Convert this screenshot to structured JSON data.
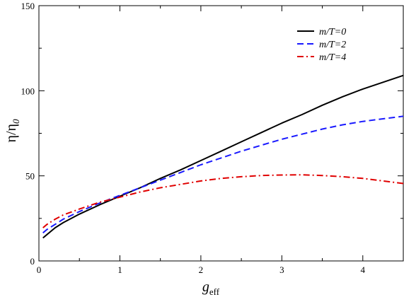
{
  "chart_data": {
    "type": "line",
    "xlabel": "g",
    "xlabel_sub": "eff",
    "ylabel": "η/η",
    "ylabel_sub": "0",
    "xlim": [
      0,
      4.5
    ],
    "ylim": [
      0,
      150
    ],
    "x_ticks": [
      0,
      1,
      2,
      3,
      4
    ],
    "y_ticks": [
      0,
      50,
      100,
      150
    ],
    "x_tick_labels": [
      "0",
      "1",
      "2",
      "3",
      "4"
    ],
    "y_tick_labels": [
      "0",
      "50",
      "100",
      "150"
    ],
    "grid": false,
    "legend_position": "top-right",
    "series": [
      {
        "name": "m/T=0",
        "color": "#000000",
        "dash": "solid",
        "x": [
          0.05,
          0.1,
          0.2,
          0.3,
          0.5,
          0.75,
          1.0,
          1.25,
          1.5,
          1.75,
          2.0,
          2.25,
          2.5,
          2.75,
          3.0,
          3.25,
          3.5,
          3.75,
          4.0,
          4.25,
          4.5
        ],
        "y": [
          13.5,
          15.5,
          19.5,
          22.5,
          27.5,
          33.0,
          38.0,
          43.0,
          48.5,
          53.5,
          59.0,
          64.5,
          70.0,
          75.5,
          81.0,
          86.0,
          91.5,
          96.5,
          101.0,
          105.0,
          109.0
        ]
      },
      {
        "name": "m/T=2",
        "color": "#1a1aff",
        "dash": "dashed",
        "x": [
          0.05,
          0.1,
          0.2,
          0.3,
          0.5,
          0.75,
          1.0,
          1.25,
          1.5,
          1.75,
          2.0,
          2.25,
          2.5,
          2.75,
          3.0,
          3.25,
          3.5,
          3.75,
          4.0,
          4.25,
          4.5
        ],
        "y": [
          16.5,
          18.5,
          21.5,
          24.5,
          29.0,
          34.0,
          38.5,
          43.0,
          47.5,
          52.0,
          56.5,
          60.5,
          64.5,
          68.0,
          71.5,
          74.5,
          77.5,
          80.0,
          82.0,
          83.5,
          85.0
        ]
      },
      {
        "name": "m/T=4",
        "color": "#e00000",
        "dash": "dashdot",
        "x": [
          0.05,
          0.1,
          0.2,
          0.3,
          0.5,
          0.75,
          1.0,
          1.25,
          1.5,
          1.75,
          2.0,
          2.25,
          2.5,
          2.75,
          3.0,
          3.25,
          3.5,
          3.75,
          4.0,
          4.25,
          4.5
        ],
        "y": [
          19.5,
          21.5,
          24.5,
          27.0,
          30.5,
          34.5,
          37.5,
          40.5,
          43.0,
          45.0,
          47.0,
          48.5,
          49.5,
          50.2,
          50.5,
          50.6,
          50.2,
          49.5,
          48.5,
          47.0,
          45.5
        ]
      }
    ]
  }
}
